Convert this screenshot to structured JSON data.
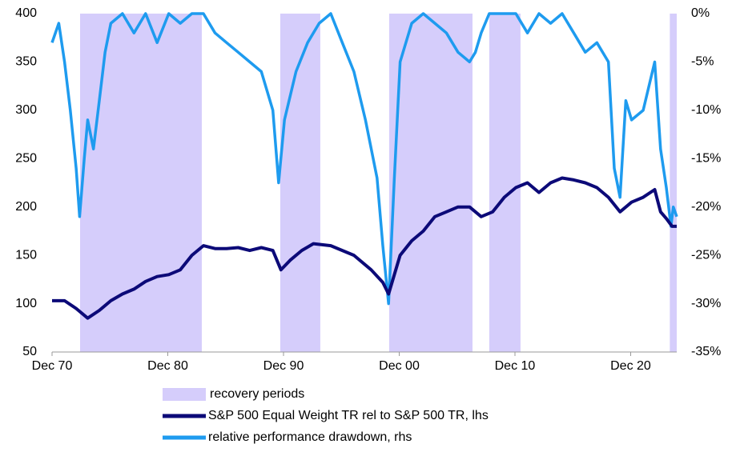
{
  "chart_data": {
    "type": "line",
    "xlim": [
      1970.92,
      2024.9
    ],
    "xticks": [
      {
        "value": 1970.92,
        "label": "Dec 70"
      },
      {
        "value": 1980.92,
        "label": "Dec 80"
      },
      {
        "value": 1990.92,
        "label": "Dec 90"
      },
      {
        "value": 2000.92,
        "label": "Dec 00"
      },
      {
        "value": 2010.92,
        "label": "Dec 10"
      },
      {
        "value": 2020.92,
        "label": "Dec 20"
      }
    ],
    "ylim": [
      50,
      400
    ],
    "yticks": [
      50,
      100,
      150,
      200,
      250,
      300,
      350,
      400
    ],
    "y2lim": [
      -35,
      0
    ],
    "y2ticks": [
      {
        "value": 0,
        "label": "0%"
      },
      {
        "value": -5,
        "label": "-5%"
      },
      {
        "value": -10,
        "label": "-10%"
      },
      {
        "value": -15,
        "label": "-15%"
      },
      {
        "value": -20,
        "label": "-20%"
      },
      {
        "value": -25,
        "label": "-25%"
      },
      {
        "value": -30,
        "label": "-30%"
      },
      {
        "value": -35,
        "label": "-35%"
      }
    ],
    "shaded": {
      "name": "recovery periods",
      "color": "#d5cdfb",
      "spans": [
        [
          1973.34,
          1983.86
        ],
        [
          1990.64,
          1994.1
        ],
        [
          2000.05,
          2007.25
        ],
        [
          2008.7,
          2011.4
        ],
        [
          2024.3,
          2024.9
        ]
      ]
    },
    "series": [
      {
        "name": "S&P 500 Equal Weight TR rel to S&P 500 TR, lhs",
        "color": "#0c0a78",
        "axis": "y",
        "x": [
          1970.92,
          1972,
          1973,
          1974,
          1975,
          1976,
          1977,
          1978,
          1979,
          1980,
          1981,
          1982,
          1983,
          1984,
          1985,
          1986,
          1987,
          1988,
          1989,
          1990,
          1990.7,
          1991.5,
          1992.5,
          1993.5,
          1995,
          1997,
          1998.5,
          1999.5,
          2000,
          2001,
          2002,
          2003,
          2004,
          2005,
          2006,
          2007,
          2008,
          2009,
          2010,
          2011,
          2012,
          2013,
          2014,
          2015,
          2016,
          2017,
          2018,
          2019,
          2020,
          2021,
          2022,
          2023,
          2023.5,
          2024,
          2024.5,
          2024.9
        ],
        "values": [
          103,
          103,
          95,
          85,
          93,
          103,
          110,
          115,
          123,
          128,
          130,
          135,
          150,
          160,
          157,
          157,
          158,
          155,
          158,
          155,
          135,
          145,
          155,
          162,
          160,
          150,
          135,
          122,
          110,
          150,
          165,
          175,
          190,
          195,
          200,
          200,
          190,
          195,
          210,
          220,
          225,
          215,
          225,
          230,
          228,
          225,
          220,
          210,
          195,
          205,
          210,
          218,
          195,
          188,
          180,
          180
        ]
      },
      {
        "name": "relative performance drawdown, rhs",
        "color": "#1e9bef",
        "axis": "y2",
        "x": [
          1970.92,
          1971.5,
          1972,
          1972.5,
          1973,
          1973.3,
          1973.7,
          1974,
          1974.5,
          1975,
          1975.5,
          1976,
          1977,
          1978,
          1979,
          1980,
          1981,
          1982,
          1983,
          1984,
          1985,
          1986,
          1987,
          1988,
          1989,
          1990,
          1990.5,
          1991,
          1992,
          1993,
          1994,
          1995,
          1996,
          1997,
          1998,
          1999,
          1999.5,
          2000,
          2000.5,
          2001,
          2002,
          2003,
          2004,
          2005,
          2006,
          2007,
          2007.5,
          2008,
          2008.7,
          2010,
          2011,
          2012,
          2013,
          2014,
          2015,
          2016,
          2017,
          2018,
          2019,
          2019.5,
          2020,
          2020.5,
          2021,
          2022,
          2023,
          2023.5,
          2024,
          2024.4,
          2024.6,
          2024.9
        ],
        "values": [
          -3,
          -1,
          -5,
          -10,
          -16,
          -21,
          -15,
          -11,
          -14,
          -9,
          -4,
          -1,
          0,
          -2,
          0,
          -3,
          0,
          -1,
          0,
          0,
          -2,
          -3,
          -4,
          -5,
          -6,
          -10,
          -17.5,
          -11,
          -6,
          -3,
          -1,
          0,
          -3,
          -6,
          -11,
          -17,
          -24,
          -30,
          -17,
          -5,
          -1,
          0,
          -1,
          -2,
          -4,
          -5,
          -4,
          -2,
          0,
          0,
          0,
          -2,
          0,
          -1,
          0,
          -2,
          -4,
          -3,
          -5,
          -16,
          -19,
          -9,
          -11,
          -10,
          -5,
          -14,
          -18,
          -22,
          -20,
          -21
        ]
      }
    ]
  }
}
